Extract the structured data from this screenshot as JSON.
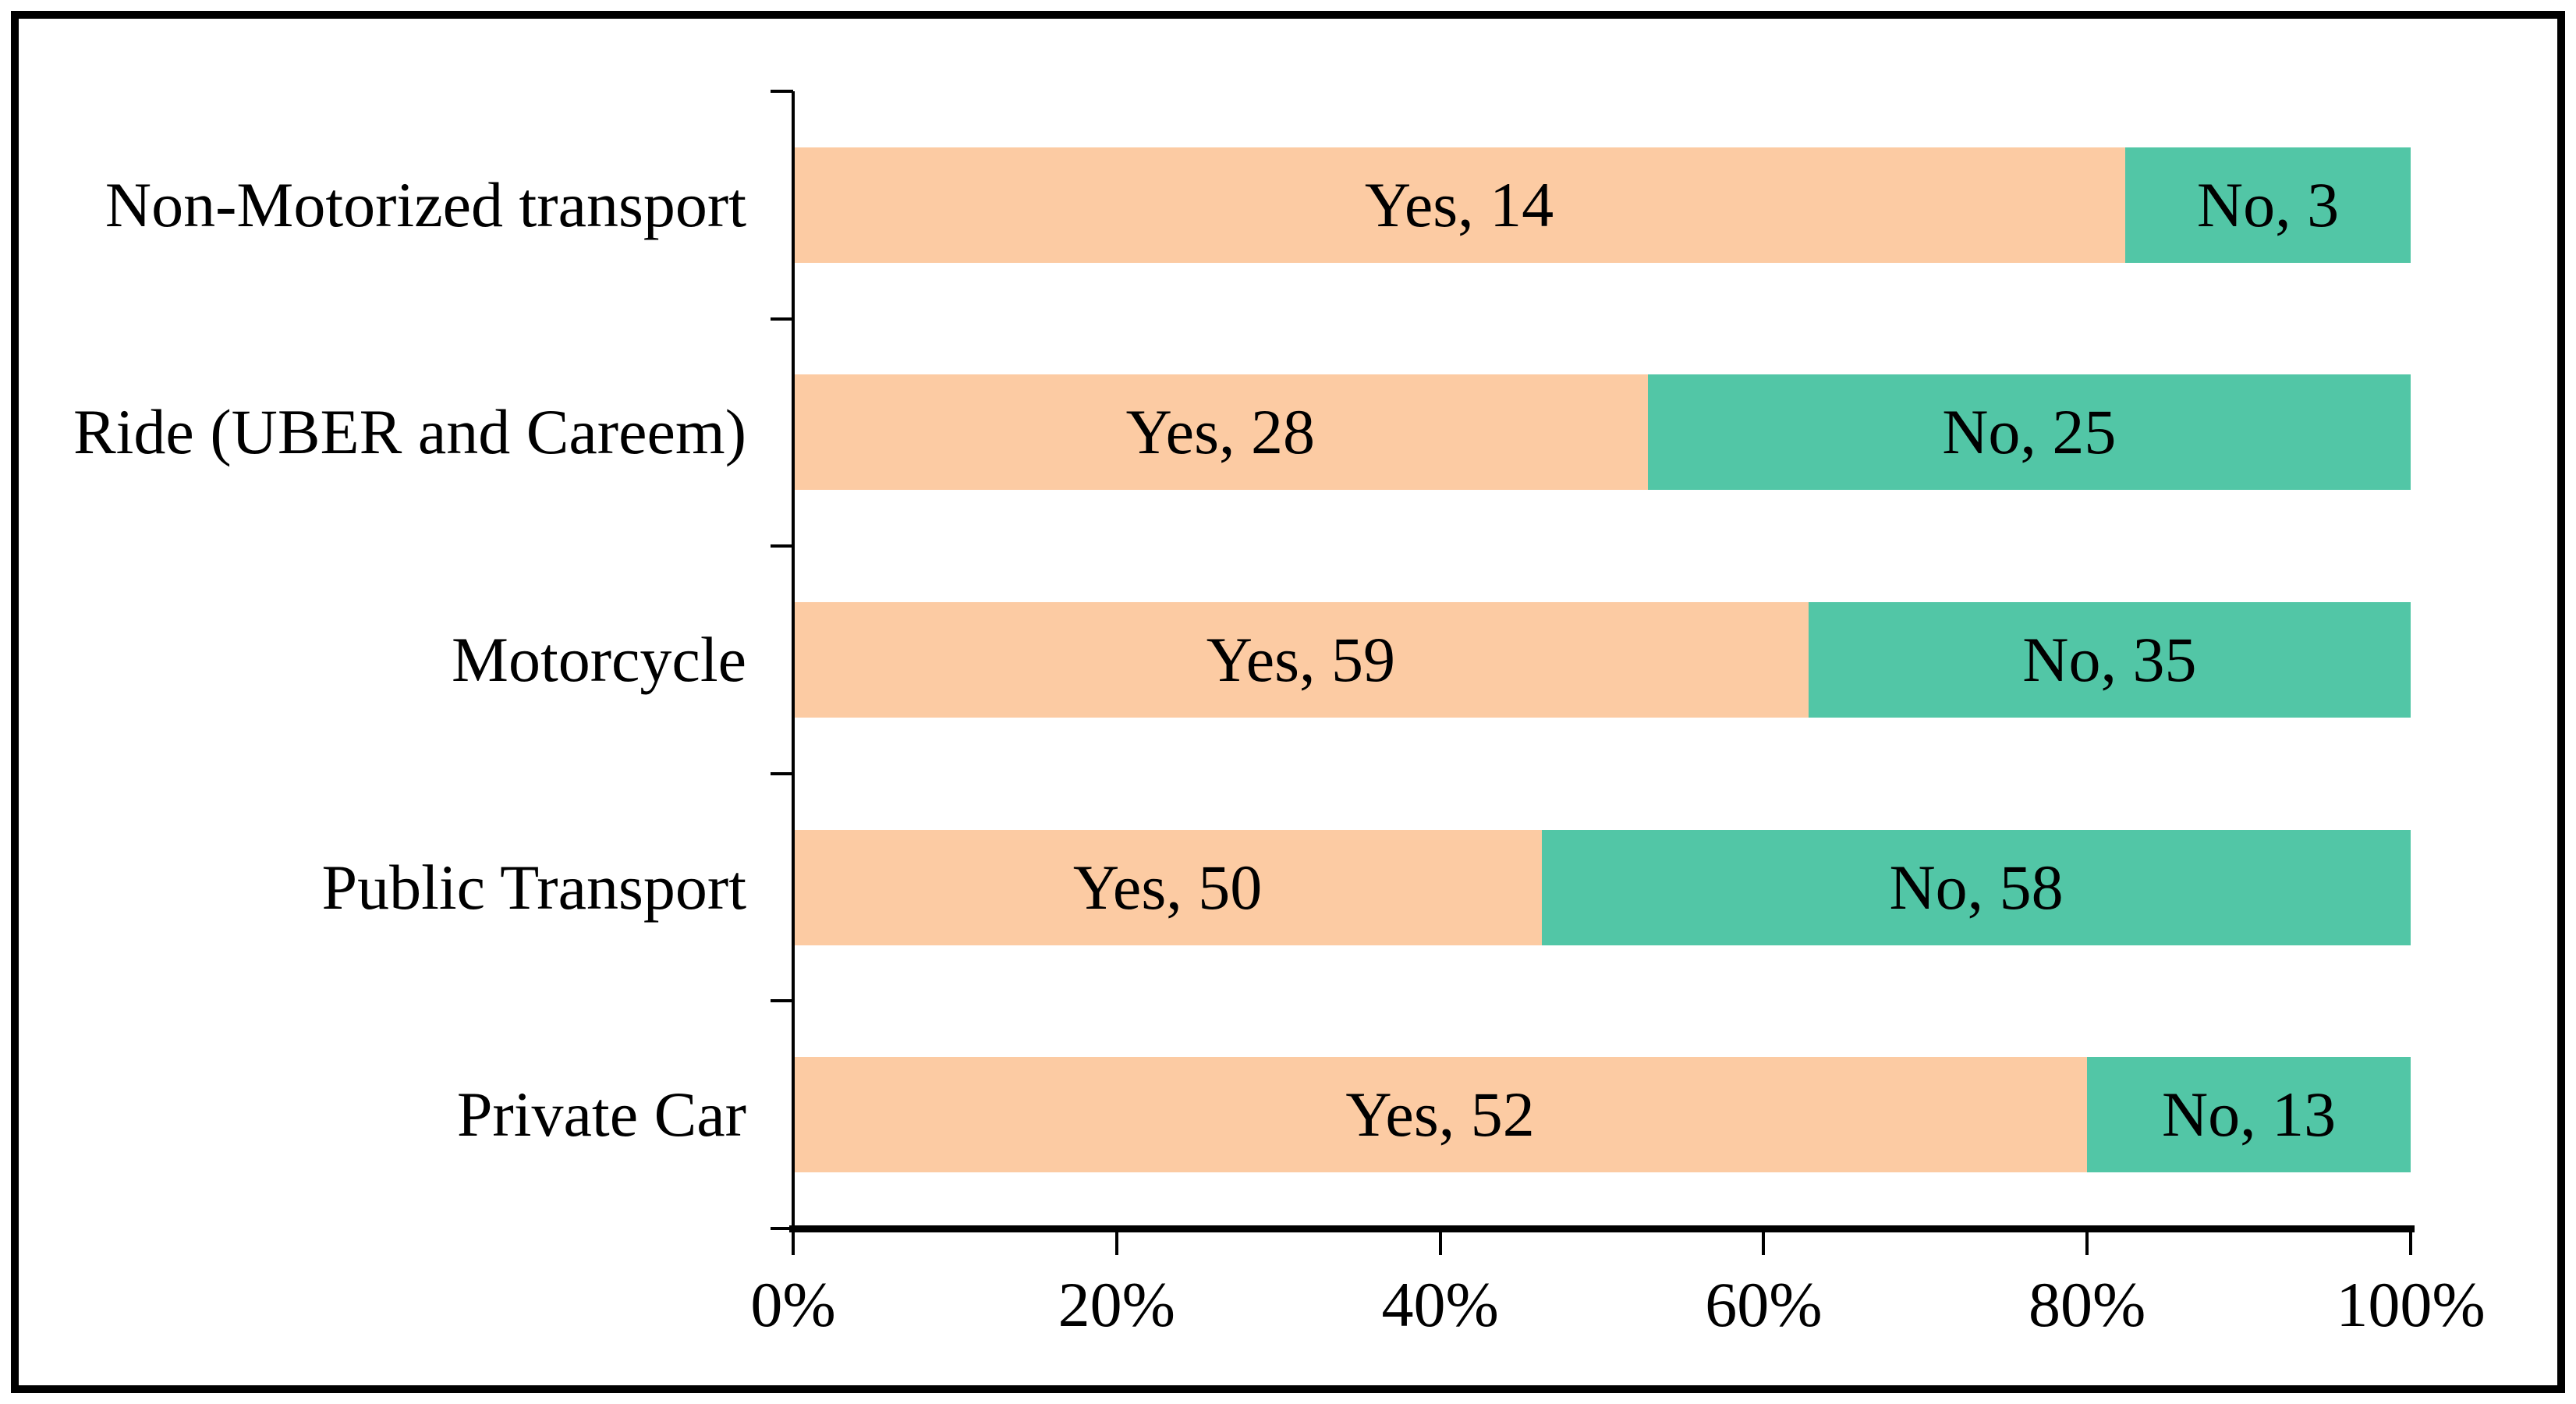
{
  "chart_data": {
    "type": "bar",
    "orientation": "horizontal",
    "stacked": "100%",
    "title": "",
    "categories": [
      "Non-Motorized transport",
      "Ride (UBER and Careem)",
      "Motorcycle",
      "Public Transport",
      "Private Car"
    ],
    "series": [
      {
        "name": "Yes",
        "color": "#FCCBA3",
        "values": [
          14,
          28,
          59,
          50,
          52
        ],
        "labels": [
          "Yes, 14",
          "Yes, 28",
          "Yes, 59",
          "Yes, 50",
          "Yes, 52"
        ]
      },
      {
        "name": "No",
        "color": "#52C6A6",
        "values": [
          3,
          25,
          35,
          58,
          13
        ],
        "labels": [
          "No, 3",
          "No, 25",
          "No, 35",
          "No, 58",
          "No, 13"
        ]
      }
    ],
    "x_axis": {
      "min": 0,
      "max": 100,
      "tick_labels": [
        "0%",
        "20%",
        "40%",
        "60%",
        "80%",
        "100%"
      ]
    },
    "y_axis": {
      "label": ""
    },
    "legend": "none",
    "gridlines": "off",
    "text_color": "#000000",
    "axis_color": "#000000",
    "frame_color": "#000000",
    "background": "#FFFFFF"
  }
}
